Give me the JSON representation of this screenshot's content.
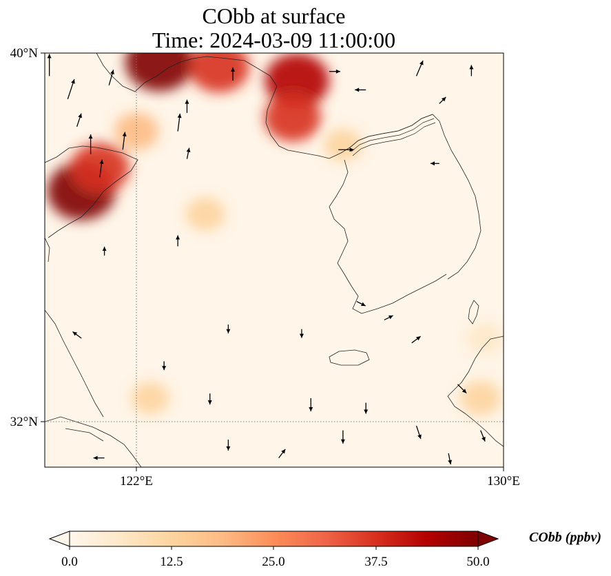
{
  "title": {
    "line1": "CObb at surface",
    "line2": "Time: 2024-03-09 11:00:00"
  },
  "map": {
    "lat_ticks": [
      {
        "value": 40,
        "label": "40°N"
      },
      {
        "value": 32,
        "label": "32°N"
      }
    ],
    "lon_ticks": [
      {
        "value": 122,
        "label": "122°E"
      },
      {
        "value": 130,
        "label": "130°E"
      }
    ],
    "extent": {
      "lon_min": 120,
      "lon_max": 130,
      "lat_min": 31,
      "lat_max": 40
    },
    "gridlines": true
  },
  "colorbar": {
    "label": "CObb (ppbv)",
    "ticks": [
      "0.0",
      "12.5",
      "25.0",
      "37.5",
      "50.0"
    ],
    "min": 0,
    "max": 50,
    "extend": "both",
    "colormap": "OrRd",
    "colors": [
      "#fff7ec",
      "#fee8c8",
      "#fdd49e",
      "#fdbb84",
      "#fc8d59",
      "#ef6548",
      "#d7301f",
      "#b30000",
      "#7f0000"
    ]
  },
  "chart_data": {
    "type": "heatmap",
    "variable": "CObb",
    "units": "ppbv",
    "plumes": [
      {
        "lon": 122.5,
        "lat": 39.8,
        "value": 50
      },
      {
        "lon": 123.8,
        "lat": 39.7,
        "value": 40
      },
      {
        "lon": 125.5,
        "lat": 39.4,
        "value": 45
      },
      {
        "lon": 125.4,
        "lat": 38.6,
        "value": 35
      },
      {
        "lon": 120.8,
        "lat": 37.0,
        "value": 50
      },
      {
        "lon": 121.2,
        "lat": 37.5,
        "value": 38
      },
      {
        "lon": 122.0,
        "lat": 38.3,
        "value": 18
      },
      {
        "lon": 123.5,
        "lat": 36.5,
        "value": 12
      },
      {
        "lon": 122.3,
        "lat": 32.5,
        "value": 10
      },
      {
        "lon": 129.5,
        "lat": 32.5,
        "value": 14
      },
      {
        "lon": 129.6,
        "lat": 33.8,
        "value": 8
      },
      {
        "lon": 126.5,
        "lat": 38.0,
        "value": 10
      }
    ],
    "wind_vectors": [
      {
        "lon": 120.1,
        "lat": 39.5,
        "u": 0.0,
        "v": 1.0
      },
      {
        "lon": 120.5,
        "lat": 39.0,
        "u": 0.3,
        "v": 0.9
      },
      {
        "lon": 120.7,
        "lat": 38.4,
        "u": 0.2,
        "v": 0.6
      },
      {
        "lon": 121.4,
        "lat": 39.3,
        "u": 0.2,
        "v": 0.7
      },
      {
        "lon": 121.0,
        "lat": 37.8,
        "u": 0.0,
        "v": 0.9
      },
      {
        "lon": 121.2,
        "lat": 37.3,
        "u": 0.1,
        "v": 0.8
      },
      {
        "lon": 121.7,
        "lat": 37.9,
        "u": 0.1,
        "v": 0.8
      },
      {
        "lon": 122.9,
        "lat": 38.3,
        "u": 0.1,
        "v": 0.8
      },
      {
        "lon": 123.1,
        "lat": 38.7,
        "u": 0.0,
        "v": 0.6
      },
      {
        "lon": 123.1,
        "lat": 37.7,
        "u": 0.1,
        "v": 0.5
      },
      {
        "lon": 124.1,
        "lat": 39.4,
        "u": 0.0,
        "v": 0.6
      },
      {
        "lon": 126.4,
        "lat": 37.9,
        "u": 0.7,
        "v": 0.0
      },
      {
        "lon": 128.1,
        "lat": 39.5,
        "u": 0.3,
        "v": 0.7
      },
      {
        "lon": 129.3,
        "lat": 39.5,
        "u": 0.0,
        "v": 0.5
      },
      {
        "lon": 128.6,
        "lat": 38.9,
        "u": 0.3,
        "v": 0.3
      },
      {
        "lon": 128.6,
        "lat": 37.6,
        "u": -0.4,
        "v": 0.0
      },
      {
        "lon": 127.0,
        "lat": 39.2,
        "u": -0.5,
        "v": 0.0
      },
      {
        "lon": 126.2,
        "lat": 39.6,
        "u": 0.5,
        "v": 0.0
      },
      {
        "lon": 121.3,
        "lat": 35.6,
        "u": 0.0,
        "v": 0.4
      },
      {
        "lon": 122.9,
        "lat": 35.8,
        "u": 0.0,
        "v": 0.5
      },
      {
        "lon": 124.0,
        "lat": 34.1,
        "u": 0.0,
        "v": -0.4
      },
      {
        "lon": 125.6,
        "lat": 34.0,
        "u": 0.0,
        "v": -0.4
      },
      {
        "lon": 126.8,
        "lat": 34.6,
        "u": 0.4,
        "v": -0.2
      },
      {
        "lon": 127.4,
        "lat": 34.2,
        "u": 0.4,
        "v": 0.2
      },
      {
        "lon": 128.0,
        "lat": 33.7,
        "u": 0.4,
        "v": 0.3
      },
      {
        "lon": 120.8,
        "lat": 33.8,
        "u": -0.4,
        "v": 0.3
      },
      {
        "lon": 122.6,
        "lat": 33.3,
        "u": 0.0,
        "v": -0.4
      },
      {
        "lon": 123.6,
        "lat": 32.6,
        "u": 0.0,
        "v": -0.5
      },
      {
        "lon": 125.8,
        "lat": 32.5,
        "u": 0.0,
        "v": -0.6
      },
      {
        "lon": 127.0,
        "lat": 32.4,
        "u": 0.0,
        "v": -0.5
      },
      {
        "lon": 128.1,
        "lat": 31.9,
        "u": 0.2,
        "v": -0.6
      },
      {
        "lon": 129.0,
        "lat": 32.8,
        "u": 0.4,
        "v": -0.4
      },
      {
        "lon": 129.5,
        "lat": 31.8,
        "u": 0.2,
        "v": -0.5
      },
      {
        "lon": 121.3,
        "lat": 31.2,
        "u": -0.5,
        "v": 0.0
      },
      {
        "lon": 124.0,
        "lat": 31.6,
        "u": 0.0,
        "v": -0.5
      },
      {
        "lon": 125.1,
        "lat": 31.2,
        "u": 0.3,
        "v": 0.4
      },
      {
        "lon": 126.5,
        "lat": 31.8,
        "u": 0.0,
        "v": -0.6
      },
      {
        "lon": 128.8,
        "lat": 31.3,
        "u": 0.1,
        "v": -0.5
      }
    ]
  }
}
